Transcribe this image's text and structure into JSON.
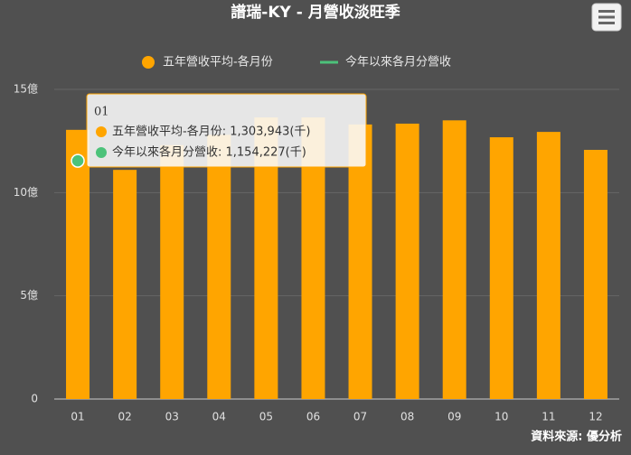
{
  "chart_data": {
    "type": "bar",
    "title": "譜瑞-KY - 月營收淡旺季",
    "categories": [
      "01",
      "02",
      "03",
      "04",
      "05",
      "06",
      "07",
      "08",
      "09",
      "10",
      "11",
      "12"
    ],
    "series": [
      {
        "name": "五年營收平均-各月份",
        "type": "bar",
        "color": "#ffa500",
        "values": [
          13.04,
          11.1,
          12.3,
          12.8,
          13.64,
          13.64,
          13.3,
          13.34,
          13.5,
          12.68,
          12.94,
          12.07
        ]
      },
      {
        "name": "今年以來各月分營收",
        "type": "line",
        "color": "#4cc27a",
        "values": [
          11.54,
          null,
          null,
          null,
          null,
          null,
          null,
          null,
          null,
          null,
          null,
          null
        ]
      }
    ],
    "ylim": [
      0,
      15
    ],
    "yticks": [
      0,
      {
        "value": 5,
        "label": "5億"
      },
      {
        "value": 10,
        "label": "10億"
      },
      {
        "value": 15,
        "label": "15億"
      }
    ],
    "grid": true,
    "legend": "top",
    "tooltip": {
      "title": "01",
      "rows": [
        "五年營收平均-各月份: 1,303,943(千)",
        "今年以來各月分營收: 1,154,227(千)"
      ]
    },
    "source": "資料來源: 優分析"
  }
}
